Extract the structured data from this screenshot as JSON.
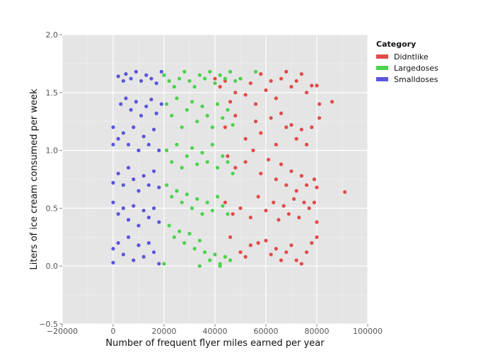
{
  "chart_data": {
    "type": "scatter",
    "title": "",
    "xlabel": "Number of frequent flyer miles earned per year",
    "ylabel": "Liters of ice cream consumed per week",
    "xlim": [
      -20000,
      100000
    ],
    "ylim": [
      -0.5,
      2.0
    ],
    "x_ticks": [
      -20000,
      0,
      20000,
      40000,
      60000,
      80000,
      100000
    ],
    "x_tick_labels": [
      "−20000",
      "0",
      "20000",
      "40000",
      "60000",
      "80000",
      "100000"
    ],
    "y_ticks": [
      -0.5,
      0.0,
      0.5,
      1.0,
      1.5,
      2.0
    ],
    "y_tick_labels": [
      "−0.5",
      "0.0",
      "0.5",
      "1.0",
      "1.5",
      "2.0"
    ],
    "grid": true,
    "legend": {
      "title": "Category",
      "placement": "right"
    },
    "series": [
      {
        "name": "Didntlike",
        "color": "#e24a4a",
        "points": [
          [
            40000,
            1.62
          ],
          [
            42000,
            1.55
          ],
          [
            44000,
            1.6
          ],
          [
            46000,
            1.42
          ],
          [
            48000,
            1.5
          ],
          [
            50000,
            1.62
          ],
          [
            52000,
            1.48
          ],
          [
            54000,
            1.58
          ],
          [
            56000,
            1.4
          ],
          [
            58000,
            1.66
          ],
          [
            60000,
            1.52
          ],
          [
            62000,
            1.6
          ],
          [
            64000,
            1.45
          ],
          [
            66000,
            1.62
          ],
          [
            68000,
            1.68
          ],
          [
            70000,
            1.55
          ],
          [
            72000,
            1.6
          ],
          [
            74000,
            1.66
          ],
          [
            76000,
            1.5
          ],
          [
            78000,
            1.56
          ],
          [
            80000,
            1.56
          ],
          [
            81000,
            1.4
          ],
          [
            86000,
            1.42
          ],
          [
            81000,
            1.28
          ],
          [
            44000,
            1.2
          ],
          [
            48000,
            1.3
          ],
          [
            52000,
            1.1
          ],
          [
            56000,
            1.25
          ],
          [
            58000,
            1.15
          ],
          [
            62000,
            1.28
          ],
          [
            64000,
            1.05
          ],
          [
            66000,
            1.32
          ],
          [
            68000,
            1.2
          ],
          [
            70000,
            1.22
          ],
          [
            72000,
            1.1
          ],
          [
            74000,
            1.18
          ],
          [
            76000,
            1.05
          ],
          [
            78000,
            1.2
          ],
          [
            45000,
            0.95
          ],
          [
            48000,
            0.85
          ],
          [
            52000,
            0.9
          ],
          [
            55000,
            1.0
          ],
          [
            58000,
            0.8
          ],
          [
            61000,
            0.92
          ],
          [
            64000,
            0.75
          ],
          [
            66000,
            0.88
          ],
          [
            68000,
            0.7
          ],
          [
            70000,
            0.82
          ],
          [
            72000,
            0.65
          ],
          [
            74000,
            0.78
          ],
          [
            76000,
            0.7
          ],
          [
            79000,
            0.75
          ],
          [
            80000,
            0.68
          ],
          [
            44000,
            0.55
          ],
          [
            47000,
            0.45
          ],
          [
            50000,
            0.5
          ],
          [
            54000,
            0.42
          ],
          [
            57000,
            0.6
          ],
          [
            60000,
            0.48
          ],
          [
            63000,
            0.55
          ],
          [
            65000,
            0.4
          ],
          [
            67000,
            0.52
          ],
          [
            69000,
            0.45
          ],
          [
            71000,
            0.58
          ],
          [
            73000,
            0.42
          ],
          [
            75000,
            0.55
          ],
          [
            77000,
            0.5
          ],
          [
            79000,
            0.55
          ],
          [
            80000,
            0.38
          ],
          [
            91000,
            0.64
          ],
          [
            46000,
            0.25
          ],
          [
            50000,
            0.12
          ],
          [
            52000,
            0.08
          ],
          [
            54000,
            0.18
          ],
          [
            57000,
            0.2
          ],
          [
            60000,
            0.22
          ],
          [
            62000,
            0.1
          ],
          [
            64000,
            0.15
          ],
          [
            66000,
            0.05
          ],
          [
            68000,
            0.12
          ],
          [
            70000,
            0.18
          ],
          [
            72000,
            0.05
          ],
          [
            74000,
            0.02
          ],
          [
            76000,
            0.12
          ],
          [
            78000,
            0.2
          ],
          [
            80000,
            0.25
          ]
        ]
      },
      {
        "name": "Largedoses",
        "color": "#4cd24c",
        "points": [
          [
            20000,
            1.65
          ],
          [
            22000,
            1.6
          ],
          [
            24000,
            1.55
          ],
          [
            26000,
            1.62
          ],
          [
            28000,
            1.68
          ],
          [
            30000,
            1.6
          ],
          [
            32000,
            1.55
          ],
          [
            34000,
            1.65
          ],
          [
            36000,
            1.62
          ],
          [
            38000,
            1.68
          ],
          [
            40000,
            1.58
          ],
          [
            42000,
            1.65
          ],
          [
            44000,
            1.62
          ],
          [
            46000,
            1.68
          ],
          [
            48000,
            1.6
          ],
          [
            50000,
            1.62
          ],
          [
            56000,
            1.68
          ],
          [
            21000,
            1.4
          ],
          [
            23000,
            1.3
          ],
          [
            25000,
            1.45
          ],
          [
            27000,
            1.2
          ],
          [
            29000,
            1.35
          ],
          [
            31000,
            1.42
          ],
          [
            33000,
            1.25
          ],
          [
            35000,
            1.38
          ],
          [
            37000,
            1.3
          ],
          [
            39000,
            1.2
          ],
          [
            41000,
            1.4
          ],
          [
            43000,
            1.28
          ],
          [
            45000,
            1.35
          ],
          [
            47000,
            1.22
          ],
          [
            21000,
            1.0
          ],
          [
            23000,
            0.9
          ],
          [
            25000,
            1.05
          ],
          [
            27000,
            0.85
          ],
          [
            29000,
            0.95
          ],
          [
            31000,
            1.02
          ],
          [
            33000,
            0.88
          ],
          [
            35000,
            0.98
          ],
          [
            37000,
            0.9
          ],
          [
            39000,
            1.05
          ],
          [
            41000,
            0.85
          ],
          [
            43000,
            0.95
          ],
          [
            45000,
            0.9
          ],
          [
            47000,
            0.8
          ],
          [
            21000,
            0.7
          ],
          [
            23000,
            0.6
          ],
          [
            25000,
            0.65
          ],
          [
            27000,
            0.55
          ],
          [
            29000,
            0.62
          ],
          [
            31000,
            0.5
          ],
          [
            33000,
            0.58
          ],
          [
            35000,
            0.45
          ],
          [
            37000,
            0.55
          ],
          [
            39000,
            0.48
          ],
          [
            41000,
            0.6
          ],
          [
            43000,
            0.52
          ],
          [
            45000,
            0.45
          ],
          [
            22000,
            0.35
          ],
          [
            24000,
            0.25
          ],
          [
            26000,
            0.3
          ],
          [
            28000,
            0.2
          ],
          [
            30000,
            0.28
          ],
          [
            32000,
            0.15
          ],
          [
            34000,
            0.22
          ],
          [
            36000,
            0.12
          ],
          [
            38000,
            0.05
          ],
          [
            40000,
            0.1
          ],
          [
            42000,
            0.02
          ],
          [
            44000,
            0.08
          ],
          [
            46000,
            0.05
          ],
          [
            20000,
            0.02
          ],
          [
            34000,
            0.0
          ],
          [
            42000,
            0.0
          ]
        ]
      },
      {
        "name": "Smalldoses",
        "color": "#5b55dc",
        "points": [
          [
            2000,
            1.64
          ],
          [
            4000,
            1.6
          ],
          [
            5000,
            1.66
          ],
          [
            7000,
            1.62
          ],
          [
            9000,
            1.68
          ],
          [
            11000,
            1.6
          ],
          [
            13000,
            1.65
          ],
          [
            15000,
            1.62
          ],
          [
            17000,
            1.58
          ],
          [
            19000,
            1.68
          ],
          [
            3000,
            1.4
          ],
          [
            5000,
            1.45
          ],
          [
            7000,
            1.35
          ],
          [
            9000,
            1.42
          ],
          [
            11000,
            1.3
          ],
          [
            13000,
            1.38
          ],
          [
            15000,
            1.44
          ],
          [
            17000,
            1.32
          ],
          [
            19000,
            1.4
          ],
          [
            0,
            1.2
          ],
          [
            2000,
            1.1
          ],
          [
            4000,
            1.15
          ],
          [
            6000,
            1.05
          ],
          [
            8000,
            1.2
          ],
          [
            10000,
            1.0
          ],
          [
            12000,
            1.12
          ],
          [
            14000,
            1.05
          ],
          [
            16000,
            1.18
          ],
          [
            18000,
            1.0
          ],
          [
            0,
            1.05
          ],
          [
            0,
            0.72
          ],
          [
            2000,
            0.8
          ],
          [
            4000,
            0.7
          ],
          [
            6000,
            0.85
          ],
          [
            8000,
            0.75
          ],
          [
            10000,
            0.65
          ],
          [
            12000,
            0.78
          ],
          [
            14000,
            0.7
          ],
          [
            16000,
            0.82
          ],
          [
            18000,
            0.68
          ],
          [
            0,
            0.55
          ],
          [
            2000,
            0.45
          ],
          [
            4000,
            0.5
          ],
          [
            6000,
            0.4
          ],
          [
            8000,
            0.52
          ],
          [
            10000,
            0.35
          ],
          [
            12000,
            0.48
          ],
          [
            14000,
            0.42
          ],
          [
            16000,
            0.5
          ],
          [
            18000,
            0.38
          ],
          [
            0,
            0.15
          ],
          [
            2000,
            0.2
          ],
          [
            4000,
            0.1
          ],
          [
            6000,
            0.25
          ],
          [
            8000,
            0.05
          ],
          [
            10000,
            0.18
          ],
          [
            12000,
            0.08
          ],
          [
            14000,
            0.2
          ],
          [
            16000,
            0.12
          ],
          [
            18000,
            0.02
          ],
          [
            0,
            0.03
          ]
        ]
      }
    ]
  }
}
